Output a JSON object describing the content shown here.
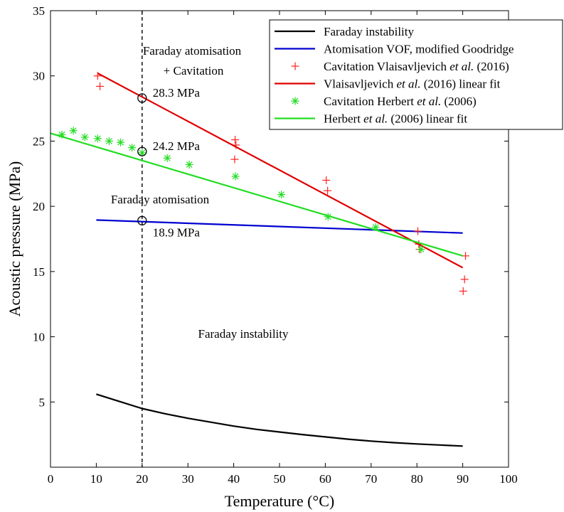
{
  "chart_data": {
    "type": "line",
    "xlabel": "Temperature (°C)",
    "ylabel": "Acoustic pressure (MPa)",
    "xlim": [
      0,
      100
    ],
    "ylim": [
      0,
      35
    ],
    "xticks": [
      "0",
      "10",
      "20",
      "30",
      "40",
      "50",
      "60",
      "70",
      "80",
      "90",
      "100"
    ],
    "yticks": [
      "5",
      "10",
      "15",
      "20",
      "25",
      "30",
      "35"
    ],
    "grid": false,
    "legend_position": "top-right",
    "vline_x": 20,
    "series": [
      {
        "key": "faraday",
        "name": "Faraday instability",
        "kind": "line",
        "color": "#000000",
        "x": [
          10,
          15,
          20,
          25,
          30,
          35,
          40,
          45,
          50,
          55,
          60,
          65,
          70,
          75,
          80,
          85,
          90
        ],
        "y": [
          5.6,
          5.05,
          4.5,
          4.1,
          3.75,
          3.45,
          3.15,
          2.9,
          2.7,
          2.5,
          2.32,
          2.15,
          2.0,
          1.88,
          1.78,
          1.7,
          1.62
        ]
      },
      {
        "key": "vof",
        "name": "Atomisation VOF, modified Goodridge",
        "kind": "line",
        "color": "#0000d0",
        "x": [
          10,
          90
        ],
        "y": [
          18.95,
          17.95
        ]
      },
      {
        "key": "vlais_pts",
        "name": "Cavitation Vlaisavljevich et al. (2016)",
        "name_parts": [
          "Cavitation Vlaisavljevich ",
          "et al.",
          " (2016)"
        ],
        "kind": "scatter",
        "marker": "plus",
        "color": "#ff2020",
        "x": [
          10.3,
          10.8,
          40.3,
          40.5,
          40.2,
          60.2,
          60.5,
          80.2,
          80.4,
          80.6,
          90.1,
          90.6,
          90.4
        ],
        "y": [
          30.0,
          29.2,
          25.1,
          24.7,
          23.6,
          22.0,
          21.2,
          18.1,
          17.1,
          16.7,
          13.5,
          16.2,
          14.4
        ]
      },
      {
        "key": "vlais_fit",
        "name": "Vlaisavljevich et al. (2016) linear fit",
        "name_parts": [
          "Vlaisavljevich ",
          "et al.",
          " (2016) linear fit"
        ],
        "kind": "line",
        "color": "#e00000",
        "x": [
          10.3,
          90
        ],
        "y": [
          30.2,
          15.3
        ]
      },
      {
        "key": "herbert_pts",
        "name": "Cavitation Herbert et al. (2006)",
        "name_parts": [
          "Cavitation Herbert ",
          "et al.",
          " (2006)"
        ],
        "kind": "scatter",
        "marker": "asterisk",
        "color": "#22dd22",
        "x": [
          2.5,
          5,
          7.5,
          10.3,
          12.8,
          15.3,
          17.8,
          20,
          25.5,
          30.3,
          40.4,
          50.4,
          60.6,
          71.0,
          80.9
        ],
        "y": [
          25.5,
          25.8,
          25.3,
          25.2,
          25.0,
          24.9,
          24.5,
          24.1,
          23.7,
          23.2,
          22.3,
          20.9,
          19.2,
          18.4,
          16.7
        ]
      },
      {
        "key": "herbert_fit",
        "name": "Herbert et al. (2006) linear fit",
        "name_parts": [
          "Herbert ",
          "et al.",
          " (2006) linear fit"
        ],
        "kind": "line",
        "color": "#22dd22",
        "x": [
          0,
          90
        ],
        "y": [
          25.6,
          16.2
        ]
      }
    ],
    "marked_points": [
      {
        "x": 20,
        "y": 28.3,
        "label": "28.3 MPa"
      },
      {
        "x": 20,
        "y": 24.2,
        "label": "24.2 MPa"
      },
      {
        "x": 20,
        "y": 18.9,
        "label": "18.9 MPa"
      }
    ],
    "annotations": [
      {
        "key": "fa_cav_1",
        "text": "Faraday atomisation"
      },
      {
        "key": "fa_cav_2",
        "text": "+ Cavitation"
      },
      {
        "key": "fa",
        "text": "Faraday atomisation"
      },
      {
        "key": "fi",
        "text": "Faraday instability"
      }
    ]
  }
}
